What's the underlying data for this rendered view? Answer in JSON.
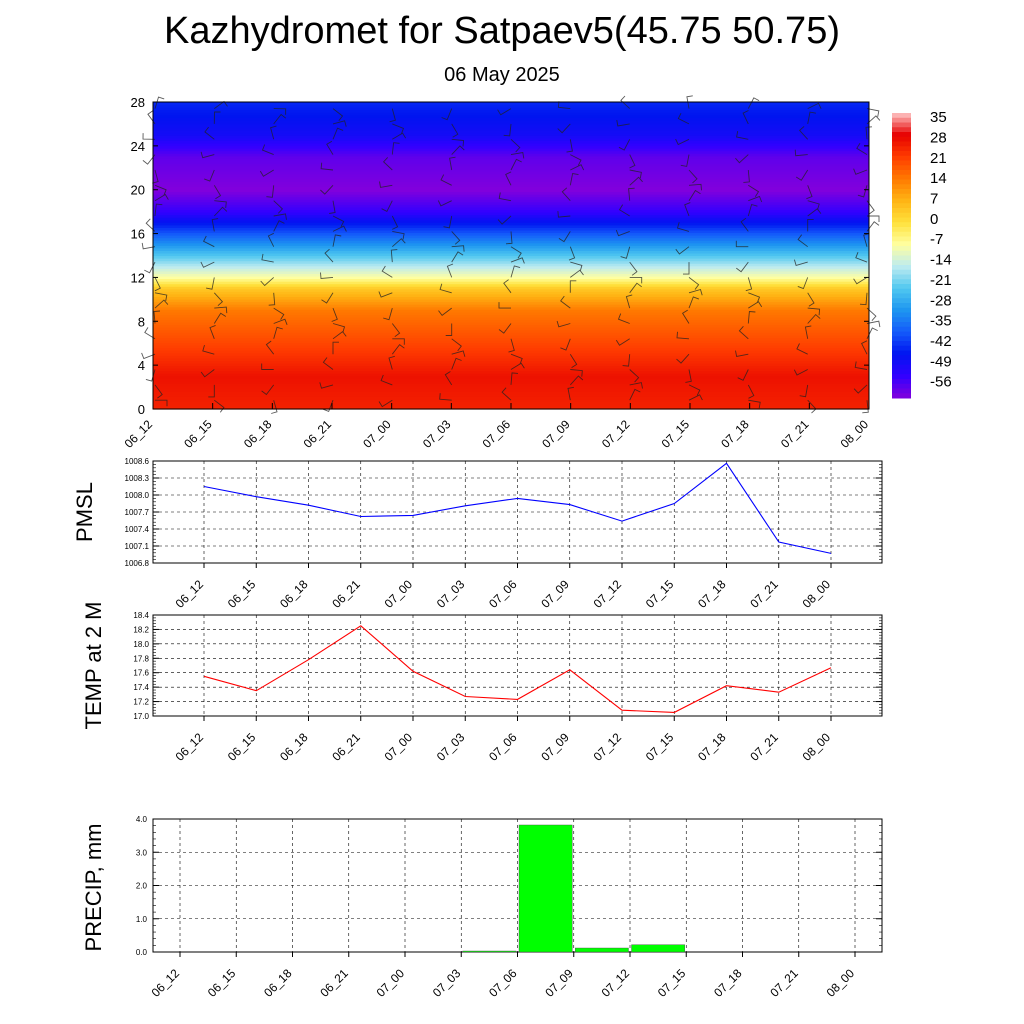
{
  "page": {
    "title": "Kazhydromet for Satpaev5(45.75 50.75)",
    "subtitle": "06 May 2025"
  },
  "colors": {
    "pmsl_line": "#0000ff",
    "temp_line": "#ff0000",
    "precip_bar": "#00ff00",
    "grid": "#000000"
  },
  "chart_data": [
    {
      "type": "heatmap",
      "title": "",
      "x_ticks": [
        "06_12",
        "06_15",
        "06_18",
        "06_21",
        "07_00",
        "07_03",
        "07_06",
        "07_09",
        "07_12",
        "07_15",
        "07_18",
        "07_21",
        "08_00"
      ],
      "y_ticks": [
        "0",
        "4",
        "8",
        "12",
        "16",
        "20",
        "24",
        "28"
      ],
      "ylim": [
        0,
        28
      ],
      "colorbar_labels": [
        "35",
        "28",
        "21",
        "14",
        "7",
        "0",
        "-7",
        "-14",
        "-21",
        "-28",
        "-35",
        "-42",
        "-49",
        "-56"
      ],
      "colorbar_range": [
        -56,
        35
      ],
      "temperature_profile": [
        {
          "level": 0,
          "value": 24
        },
        {
          "level": 3,
          "value": 26
        },
        {
          "level": 6,
          "value": 20
        },
        {
          "level": 9,
          "value": 14
        },
        {
          "level": 11,
          "value": 4
        },
        {
          "level": 12,
          "value": -7
        },
        {
          "level": 13,
          "value": -14
        },
        {
          "level": 14,
          "value": -21
        },
        {
          "level": 15,
          "value": -28
        },
        {
          "level": 16,
          "value": -35
        },
        {
          "level": 17,
          "value": -42
        },
        {
          "level": 18,
          "value": -49
        },
        {
          "level": 20,
          "value": -56
        },
        {
          "level": 23,
          "value": -53
        },
        {
          "level": 25,
          "value": -45
        },
        {
          "level": 28,
          "value": -40
        }
      ],
      "wind_barbs": "shown"
    },
    {
      "type": "line",
      "ylabel": "PMSL",
      "x": [
        "06_12",
        "06_15",
        "06_18",
        "06_21",
        "07_00",
        "07_03",
        "07_06",
        "07_09",
        "07_12",
        "07_15",
        "07_18",
        "07_21",
        "08_00"
      ],
      "y_ticks": [
        "1006.8",
        "1007.1",
        "1007.4",
        "1007.7",
        "1008.0",
        "1008.3",
        "1008.6"
      ],
      "ylim": [
        1006.8,
        1008.6
      ],
      "series": [
        {
          "values": [
            1008.15,
            1007.97,
            1007.82,
            1007.62,
            1007.64,
            1007.81,
            1007.94,
            1007.83,
            1007.54,
            1007.85,
            1008.56,
            1007.17,
            1006.97
          ]
        }
      ],
      "grid": true
    },
    {
      "type": "line",
      "ylabel": "TEMP at 2 M",
      "x": [
        "06_12",
        "06_15",
        "06_18",
        "06_21",
        "07_00",
        "07_03",
        "07_06",
        "07_09",
        "07_12",
        "07_15",
        "07_18",
        "07_21",
        "08_00"
      ],
      "y_ticks": [
        "17.0",
        "17.2",
        "17.4",
        "17.6",
        "17.8",
        "18.0",
        "18.2",
        "18.4"
      ],
      "ylim": [
        17.0,
        18.4
      ],
      "series": [
        {
          "values": [
            17.55,
            17.35,
            17.78,
            18.25,
            17.62,
            17.27,
            17.23,
            17.64,
            17.08,
            17.05,
            17.42,
            17.33,
            17.67
          ]
        }
      ],
      "grid": true
    },
    {
      "type": "bar",
      "ylabel": "PRECIP, mm",
      "categories": [
        "06_12",
        "06_15",
        "06_18",
        "06_21",
        "07_00",
        "07_03",
        "07_06",
        "07_09",
        "07_12",
        "07_15",
        "07_18",
        "07_21",
        "08_00"
      ],
      "y_ticks": [
        "0.0",
        "1.0",
        "2.0",
        "3.0",
        "4.0"
      ],
      "ylim": [
        0,
        4.0
      ],
      "bars": [
        {
          "from": "07_03",
          "to": "07_06",
          "value": 0.03
        },
        {
          "from": "07_06",
          "to": "07_09",
          "value": 3.82
        },
        {
          "from": "07_09",
          "to": "07_12",
          "value": 0.12
        },
        {
          "from": "07_12",
          "to": "07_15",
          "value": 0.22
        }
      ],
      "grid": true
    }
  ]
}
